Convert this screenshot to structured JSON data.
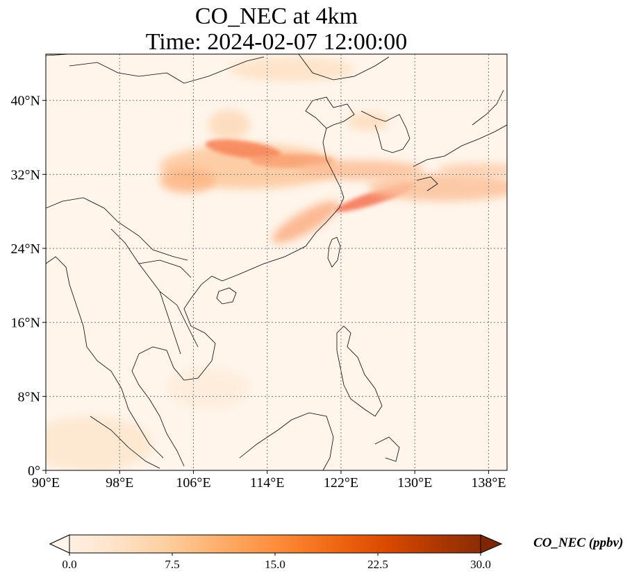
{
  "title": {
    "line1": "CO_NEC at 4km",
    "line2": "Time: 2024-02-07 12:00:00"
  },
  "map": {
    "lon_range": [
      90,
      140
    ],
    "lat_range": [
      0,
      45
    ],
    "lat_ticks": [
      {
        "value": 40,
        "label": "40°N"
      },
      {
        "value": 32,
        "label": "32°N"
      },
      {
        "value": 24,
        "label": "24°N"
      },
      {
        "value": 16,
        "label": "16°N"
      },
      {
        "value": 8,
        "label": "8°N"
      },
      {
        "value": 0,
        "label": "0°"
      }
    ],
    "lon_ticks": [
      {
        "value": 90,
        "label": "90°E"
      },
      {
        "value": 98,
        "label": "98°E"
      },
      {
        "value": 106,
        "label": "106°E"
      },
      {
        "value": 114,
        "label": "114°E"
      },
      {
        "value": 122,
        "label": "122°E"
      },
      {
        "value": 130,
        "label": "130°E"
      },
      {
        "value": 138,
        "label": "138°E"
      }
    ],
    "gridlines": true,
    "background_color": "#fff5eb"
  },
  "colorbar": {
    "title": "CO_NEC (ppbv)",
    "colormap": "Oranges",
    "extend": "both",
    "range": [
      0,
      30
    ],
    "ticks": [
      {
        "value": 0,
        "label": "0.0"
      },
      {
        "value": 7.5,
        "label": "7.5"
      },
      {
        "value": 15,
        "label": "15.0"
      },
      {
        "value": 22.5,
        "label": "22.5"
      },
      {
        "value": 30,
        "label": "30.0"
      }
    ],
    "colors": [
      "#fff5eb",
      "#fee6ce",
      "#fdd0a2",
      "#fdae6b",
      "#fd8d3c",
      "#f16913",
      "#d94801",
      "#a63603",
      "#7f2704"
    ]
  }
}
